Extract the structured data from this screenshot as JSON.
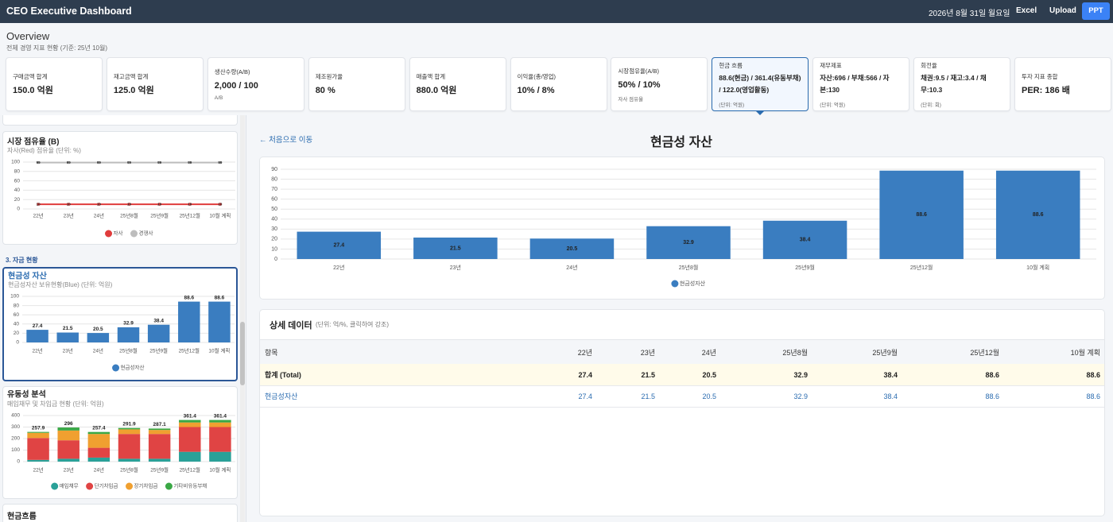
{
  "header": {
    "title": "CEO Executive Dashboard",
    "date": "2026년 8월 31일 월요일",
    "buttons": [
      "Excel",
      "Upload",
      "PPT"
    ]
  },
  "overview": {
    "title": "Overview",
    "subtitle": "전체 경영 지표 현황 (기준: 25년 10월)"
  },
  "kpis": [
    {
      "label": "구매금액 합계",
      "value": "150.0 억원"
    },
    {
      "label": "재고금액 합계",
      "value": "125.0 억원"
    },
    {
      "label": "생산수량(A/B)",
      "value": "2,000 / 100",
      "note": "A/B"
    },
    {
      "label": "제조원가율",
      "value": "80 %"
    },
    {
      "label": "매출액 합계",
      "value": "880.0 억원"
    },
    {
      "label": "이익율(총/영업)",
      "value": "10% / 8%"
    },
    {
      "label": "시장점유율(A/B)",
      "value": "50% / 10%",
      "note": "자사 점유율"
    },
    {
      "label": "현금 흐름",
      "value": "88.6(현금) / 361.4(유동부채) / 122.0(영업활동)",
      "note": "(단위: 억원)",
      "selected": true
    },
    {
      "label": "재무제표",
      "value": "자산:696 / 부채:566 / 자본:130",
      "note": "(단위: 억원)"
    },
    {
      "label": "회전율",
      "value": "채권:9.5 / 재고:3.4 / 채무:10.3",
      "note": "(단위: 회)"
    },
    {
      "label": "투자 지표 종합",
      "value": "PER: 186 배"
    }
  ],
  "sidebar": {
    "section": "3. 자금 현황",
    "cashflow_title": "현금흐름"
  },
  "main": {
    "back": "← 처음으로 이동",
    "title": "현금성 자산",
    "detail_title": "상세 데이터",
    "detail_note": "(단위: 억/%, 클릭하여 강조)"
  },
  "table": {
    "header": [
      "항목",
      "22년",
      "23년",
      "24년",
      "25년8월",
      "25년9월",
      "25년12월",
      "10월 계획"
    ],
    "rows": [
      [
        "합계 (Total)",
        27.4,
        21.5,
        20.5,
        32.9,
        38.4,
        88.6,
        88.6
      ],
      [
        "현금성자산",
        27.4,
        21.5,
        20.5,
        32.9,
        38.4,
        88.6,
        88.6
      ]
    ]
  },
  "chart_data": [
    {
      "type": "line",
      "title": "시장 점유율 (B)",
      "subtitle": "자사(Red) 점유율 (단위: %)",
      "categories": [
        "22년",
        "23년",
        "24년",
        "25년8월",
        "25년9월",
        "25년12월",
        "10월 계획"
      ],
      "series": [
        {
          "name": "자사",
          "color": "#e03c3c",
          "values": [
            10,
            10,
            10,
            10,
            10,
            10,
            10
          ]
        },
        {
          "name": "경쟁사",
          "color": "#bdbdbd",
          "values": [
            99,
            99,
            99,
            99,
            99,
            99,
            99
          ]
        }
      ],
      "ylim": [
        0,
        100
      ],
      "yticks": [
        0,
        20,
        40,
        60,
        80,
        100
      ],
      "grid": true
    },
    {
      "type": "bar",
      "title": "현금성 자산",
      "subtitle": "현금성자산 보유현황(Blue) (단위: 억원)",
      "categories": [
        "22년",
        "23년",
        "24년",
        "25년8월",
        "25년9월",
        "25년12월",
        "10월 계획"
      ],
      "series": [
        {
          "name": "현금성자산",
          "color": "#3a7dc0",
          "values": [
            27.4,
            21.5,
            20.5,
            32.9,
            38.4,
            88.6,
            88.6
          ]
        }
      ],
      "ylim": [
        0,
        100
      ],
      "yticks": [
        0,
        20,
        40,
        60,
        80,
        100
      ],
      "grid": true,
      "label_position": "above"
    },
    {
      "type": "stacked_bar",
      "title": "유동성 분석",
      "subtitle": "매입채무 및 차입금 현황 (단위: 억원)",
      "categories": [
        "22년",
        "23년",
        "24년",
        "25년8월",
        "25년9월",
        "25년12월",
        "10월 계획"
      ],
      "series": [
        {
          "name": "매입채무",
          "color": "#2aa198",
          "values": [
            15,
            25,
            35,
            25,
            25,
            85,
            85
          ]
        },
        {
          "name": "단기차입금",
          "color": "#e04444",
          "values": [
            190,
            160,
            85,
            215,
            215,
            215,
            215
          ]
        },
        {
          "name": "장기차입금",
          "color": "#f0a030",
          "values": [
            45,
            85,
            120,
            40,
            35,
            40,
            40
          ]
        },
        {
          "name": "기타비유동부채",
          "color": "#3aa845",
          "values": [
            7.9,
            26,
            17.4,
            11.9,
            12.1,
            21.4,
            21.4
          ]
        }
      ],
      "totals": [
        257.9,
        296,
        257.4,
        291.9,
        287.1,
        361.4,
        361.4
      ],
      "ylim": [
        0,
        400
      ],
      "yticks": [
        0,
        100,
        200,
        300,
        400
      ],
      "grid": true
    },
    {
      "type": "bar",
      "categories": [
        "22년",
        "23년",
        "24년",
        "25년8월",
        "25년9월",
        "25년12월",
        "10월 계획"
      ],
      "series": [
        {
          "name": "현금성자산",
          "color": "#3a7dc0",
          "values": [
            27.4,
            21.5,
            20.5,
            32.9,
            38.4,
            88.6,
            88.6
          ]
        }
      ],
      "ylim": [
        0,
        90
      ],
      "yticks": [
        0,
        10,
        20,
        30,
        40,
        50,
        60,
        70,
        80,
        90
      ],
      "grid": true,
      "label_position": "inside"
    }
  ]
}
